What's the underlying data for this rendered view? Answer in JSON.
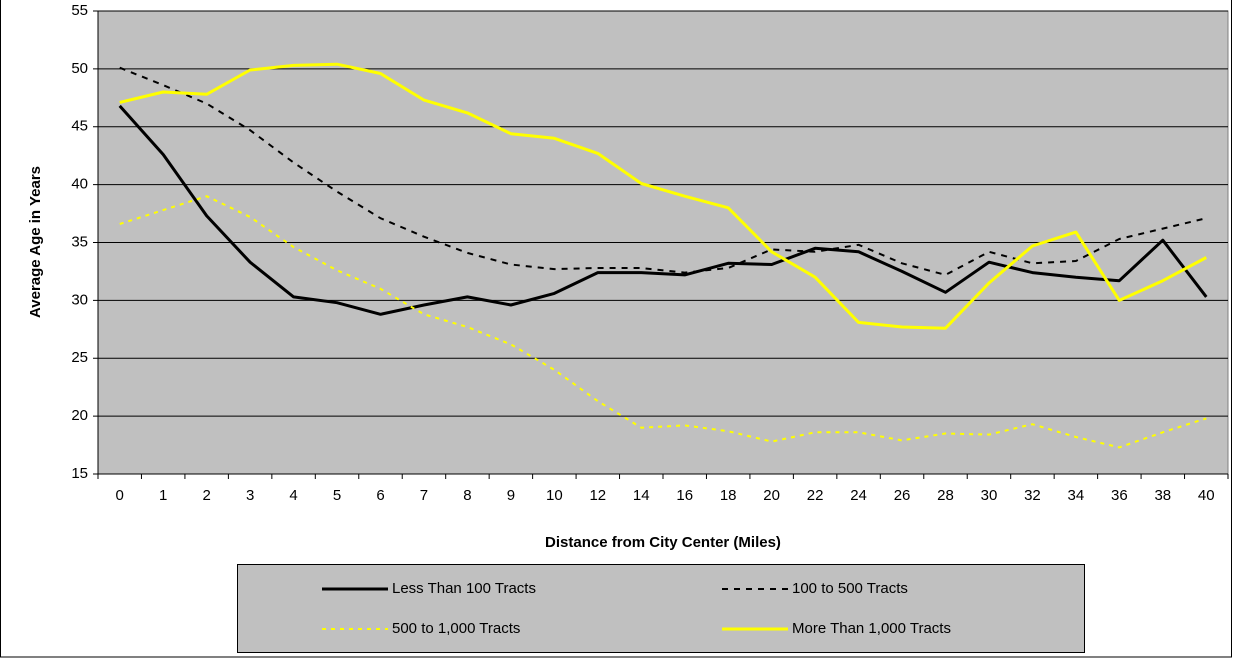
{
  "chart_data": {
    "type": "line",
    "x_label": "Distance from City Center (Miles)",
    "y_label": "Average Age in Years",
    "categories": [
      "0",
      "1",
      "2",
      "3",
      "4",
      "5",
      "6",
      "7",
      "8",
      "9",
      "10",
      "12",
      "14",
      "16",
      "18",
      "20",
      "22",
      "24",
      "26",
      "28",
      "30",
      "32",
      "34",
      "36",
      "38",
      "40"
    ],
    "series": [
      {
        "name": "Less Than 100 Tracts",
        "color": "#000000",
        "dash": "solid",
        "values": [
          46.8,
          42.6,
          37.3,
          33.3,
          30.3,
          29.8,
          28.8,
          29.6,
          30.3,
          29.6,
          30.6,
          32.4,
          32.4,
          32.2,
          33.2,
          33.1,
          34.5,
          34.2,
          32.5,
          30.7,
          33.3,
          32.4,
          32.0,
          31.7,
          35.2,
          30.3
        ]
      },
      {
        "name": "100 to 500 Tracts",
        "color": "#000000",
        "dash": "dash",
        "values": [
          50.1,
          48.6,
          47.0,
          44.7,
          41.9,
          39.4,
          37.1,
          35.5,
          34.1,
          33.1,
          32.7,
          32.8,
          32.8,
          32.4,
          32.8,
          34.4,
          34.2,
          34.8,
          33.2,
          32.2,
          34.2,
          33.2,
          33.4,
          35.3,
          36.2,
          37.1
        ]
      },
      {
        "name": "500 to 1,000 Tracts",
        "color": "#ffff00",
        "dash": "dot",
        "values": [
          36.6,
          37.8,
          39.0,
          37.2,
          34.6,
          32.6,
          31.0,
          28.8,
          27.7,
          26.2,
          24.0,
          21.3,
          19.0,
          19.2,
          18.7,
          17.8,
          18.6,
          18.6,
          17.9,
          18.5,
          18.4,
          19.3,
          18.2,
          17.3,
          18.6,
          19.8
        ]
      },
      {
        "name": "More Than 1,000 Tracts",
        "color": "#ffff00",
        "dash": "solid",
        "values": [
          47.1,
          48.0,
          47.8,
          49.9,
          50.3,
          50.4,
          49.6,
          47.3,
          46.2,
          44.4,
          44.0,
          42.7,
          40.1,
          39.0,
          38.0,
          34.2,
          32.0,
          28.1,
          27.7,
          27.6,
          31.5,
          34.7,
          35.9,
          30.0,
          31.7,
          33.7
        ]
      }
    ],
    "ylim": [
      15,
      55
    ],
    "yticks": [
      15,
      20,
      25,
      30,
      35,
      40,
      45,
      50,
      55
    ],
    "grid": true,
    "legend": "bottom",
    "background": "#c0c0c0"
  }
}
